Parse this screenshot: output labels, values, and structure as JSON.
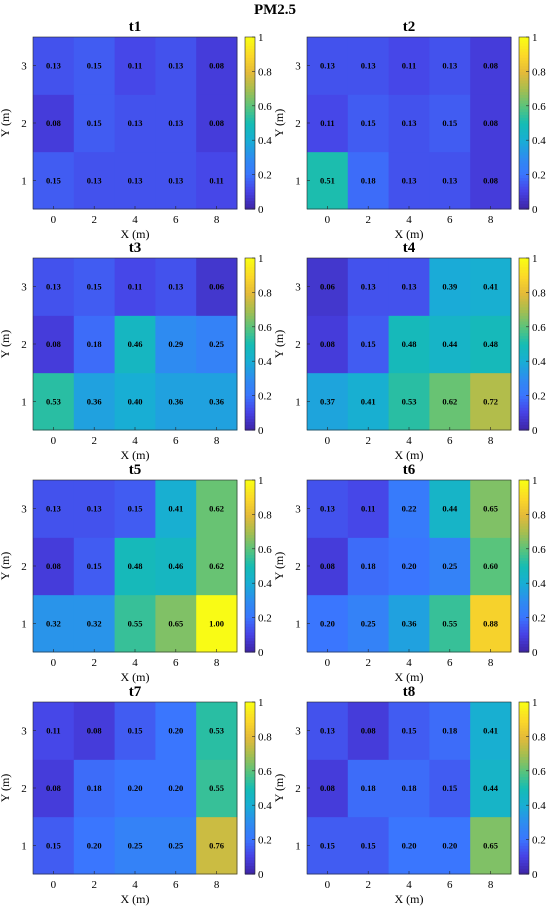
{
  "figure": {
    "title": "PM2.5"
  },
  "chart_data": [
    {
      "type": "heatmap",
      "title": "t1",
      "x": [
        0,
        2,
        4,
        6,
        8
      ],
      "y": [
        1,
        2,
        3
      ],
      "values": [
        [
          0.15,
          0.13,
          0.13,
          0.13,
          0.11
        ],
        [
          0.08,
          0.15,
          0.13,
          0.13,
          0.08
        ],
        [
          0.13,
          0.15,
          0.11,
          0.13,
          0.08
        ]
      ],
      "labels": [
        [
          "0.15",
          "0.13",
          "0.13",
          "0.13",
          "0.11"
        ],
        [
          "0.08",
          "0.15",
          "0.13",
          "0.13",
          "0.08"
        ],
        [
          "0.13",
          "0.15",
          "0.11",
          "0.13",
          "0.08"
        ]
      ],
      "xlabel": "X (m)",
      "ylabel": "Y (m)",
      "colorbar": {
        "range": [
          0,
          1
        ],
        "ticks": [
          "0",
          "0.2",
          "0.4",
          "0.6",
          "0.8",
          "1"
        ]
      }
    },
    {
      "type": "heatmap",
      "title": "t2",
      "x": [
        0,
        2,
        4,
        6,
        8
      ],
      "y": [
        1,
        2,
        3
      ],
      "values": [
        [
          0.51,
          0.18,
          0.13,
          0.13,
          0.08
        ],
        [
          0.11,
          0.15,
          0.13,
          0.15,
          0.08
        ],
        [
          0.13,
          0.13,
          0.11,
          0.13,
          0.08
        ]
      ],
      "labels": [
        [
          "0.51",
          "0.18",
          "0.13",
          "0.13",
          "0.08"
        ],
        [
          "0.11",
          "0.15",
          "0.13",
          "0.15",
          "0.08"
        ],
        [
          "0.13",
          "0.13",
          "0.11",
          "0.13",
          "0.08"
        ]
      ],
      "xlabel": "X (m)",
      "ylabel": "Y (m)",
      "colorbar": {
        "range": [
          0,
          1
        ],
        "ticks": [
          "0",
          "0.2",
          "0.4",
          "0.6",
          "0.8",
          "1"
        ]
      }
    },
    {
      "type": "heatmap",
      "title": "t3",
      "x": [
        0,
        2,
        4,
        6,
        8
      ],
      "y": [
        1,
        2,
        3
      ],
      "values": [
        [
          0.53,
          0.36,
          0.4,
          0.36,
          0.36
        ],
        [
          0.08,
          0.18,
          0.46,
          0.29,
          0.25
        ],
        [
          0.13,
          0.15,
          0.11,
          0.13,
          0.06
        ]
      ],
      "labels": [
        [
          "0.53",
          "0.36",
          "0.40",
          "0.36",
          "0.36"
        ],
        [
          "0.08",
          "0.18",
          "0.46",
          "0.29",
          "0.25"
        ],
        [
          "0.13",
          "0.15",
          "0.11",
          "0.13",
          "0.06"
        ]
      ],
      "xlabel": "X (m)",
      "ylabel": "Y (m)",
      "colorbar": {
        "range": [
          0,
          1
        ],
        "ticks": [
          "0",
          "0.2",
          "0.4",
          "0.6",
          "0.8",
          "1"
        ]
      }
    },
    {
      "type": "heatmap",
      "title": "t4",
      "x": [
        0,
        2,
        4,
        6,
        8
      ],
      "y": [
        1,
        2,
        3
      ],
      "values": [
        [
          0.37,
          0.41,
          0.53,
          0.62,
          0.72
        ],
        [
          0.08,
          0.15,
          0.48,
          0.44,
          0.48
        ],
        [
          0.06,
          0.13,
          0.13,
          0.39,
          0.41
        ]
      ],
      "labels": [
        [
          "0.37",
          "0.41",
          "0.53",
          "0.62",
          "0.72"
        ],
        [
          "0.08",
          "0.15",
          "0.48",
          "0.44",
          "0.48"
        ],
        [
          "0.06",
          "0.13",
          "0.13",
          "0.39",
          "0.41"
        ]
      ],
      "xlabel": "X (m)",
      "ylabel": "Y (m)",
      "colorbar": {
        "range": [
          0,
          1
        ],
        "ticks": [
          "0",
          "0.2",
          "0.4",
          "0.6",
          "0.8",
          "1"
        ]
      }
    },
    {
      "type": "heatmap",
      "title": "t5",
      "x": [
        0,
        2,
        4,
        6,
        8
      ],
      "y": [
        1,
        2,
        3
      ],
      "values": [
        [
          0.32,
          0.32,
          0.55,
          0.65,
          1.0
        ],
        [
          0.08,
          0.15,
          0.48,
          0.46,
          0.62
        ],
        [
          0.13,
          0.13,
          0.15,
          0.41,
          0.62
        ]
      ],
      "labels": [
        [
          "0.32",
          "0.32",
          "0.55",
          "0.65",
          "1.00"
        ],
        [
          "0.08",
          "0.15",
          "0.48",
          "0.46",
          "0.62"
        ],
        [
          "0.13",
          "0.13",
          "0.15",
          "0.41",
          "0.62"
        ]
      ],
      "xlabel": "X (m)",
      "ylabel": "Y (m)",
      "colorbar": {
        "range": [
          0,
          1
        ],
        "ticks": [
          "0",
          "0.2",
          "0.4",
          "0.6",
          "0.8",
          "1"
        ]
      }
    },
    {
      "type": "heatmap",
      "title": "t6",
      "x": [
        0,
        2,
        4,
        6,
        8
      ],
      "y": [
        1,
        2,
        3
      ],
      "values": [
        [
          0.2,
          0.25,
          0.36,
          0.55,
          0.88
        ],
        [
          0.08,
          0.18,
          0.2,
          0.25,
          0.6
        ],
        [
          0.13,
          0.11,
          0.22,
          0.44,
          0.65
        ]
      ],
      "labels": [
        [
          "0.20",
          "0.25",
          "0.36",
          "0.55",
          "0.88"
        ],
        [
          "0.08",
          "0.18",
          "0.20",
          "0.25",
          "0.60"
        ],
        [
          "0.13",
          "0.11",
          "0.22",
          "0.44",
          "0.65"
        ]
      ],
      "xlabel": "X (m)",
      "ylabel": "Y (m)",
      "colorbar": {
        "range": [
          0,
          1
        ],
        "ticks": [
          "0",
          "0.2",
          "0.4",
          "0.6",
          "0.8",
          "1"
        ]
      }
    },
    {
      "type": "heatmap",
      "title": "t7",
      "x": [
        0,
        2,
        4,
        6,
        8
      ],
      "y": [
        1,
        2,
        3
      ],
      "values": [
        [
          0.15,
          0.2,
          0.25,
          0.25,
          0.76
        ],
        [
          0.08,
          0.18,
          0.2,
          0.2,
          0.55
        ],
        [
          0.11,
          0.08,
          0.15,
          0.2,
          0.53
        ]
      ],
      "labels": [
        [
          "0.15",
          "0.20",
          "0.25",
          "0.25",
          "0.76"
        ],
        [
          "0.08",
          "0.18",
          "0.20",
          "0.20",
          "0.55"
        ],
        [
          "0.11",
          "0.08",
          "0.15",
          "0.20",
          "0.53"
        ]
      ],
      "xlabel": "X (m)",
      "ylabel": "Y (m)",
      "colorbar": {
        "range": [
          0,
          1
        ],
        "ticks": [
          "0",
          "0.2",
          "0.4",
          "0.6",
          "0.8",
          "1"
        ]
      }
    },
    {
      "type": "heatmap",
      "title": "t8",
      "x": [
        0,
        2,
        4,
        6,
        8
      ],
      "y": [
        1,
        2,
        3
      ],
      "values": [
        [
          0.15,
          0.15,
          0.2,
          0.2,
          0.65
        ],
        [
          0.08,
          0.18,
          0.18,
          0.15,
          0.44
        ],
        [
          0.13,
          0.08,
          0.15,
          0.18,
          0.41
        ]
      ],
      "labels": [
        [
          "0.15",
          "0.15",
          "0.20",
          "0.20",
          "0.65"
        ],
        [
          "0.08",
          "0.18",
          "0.18",
          "0.15",
          "0.44"
        ],
        [
          "0.13",
          "0.08",
          "0.15",
          "0.18",
          "0.41"
        ]
      ],
      "xlabel": "X (m)",
      "ylabel": "Y (m)",
      "colorbar": {
        "range": [
          0,
          1
        ],
        "ticks": [
          "0",
          "0.2",
          "0.4",
          "0.6",
          "0.8",
          "1"
        ]
      }
    }
  ]
}
